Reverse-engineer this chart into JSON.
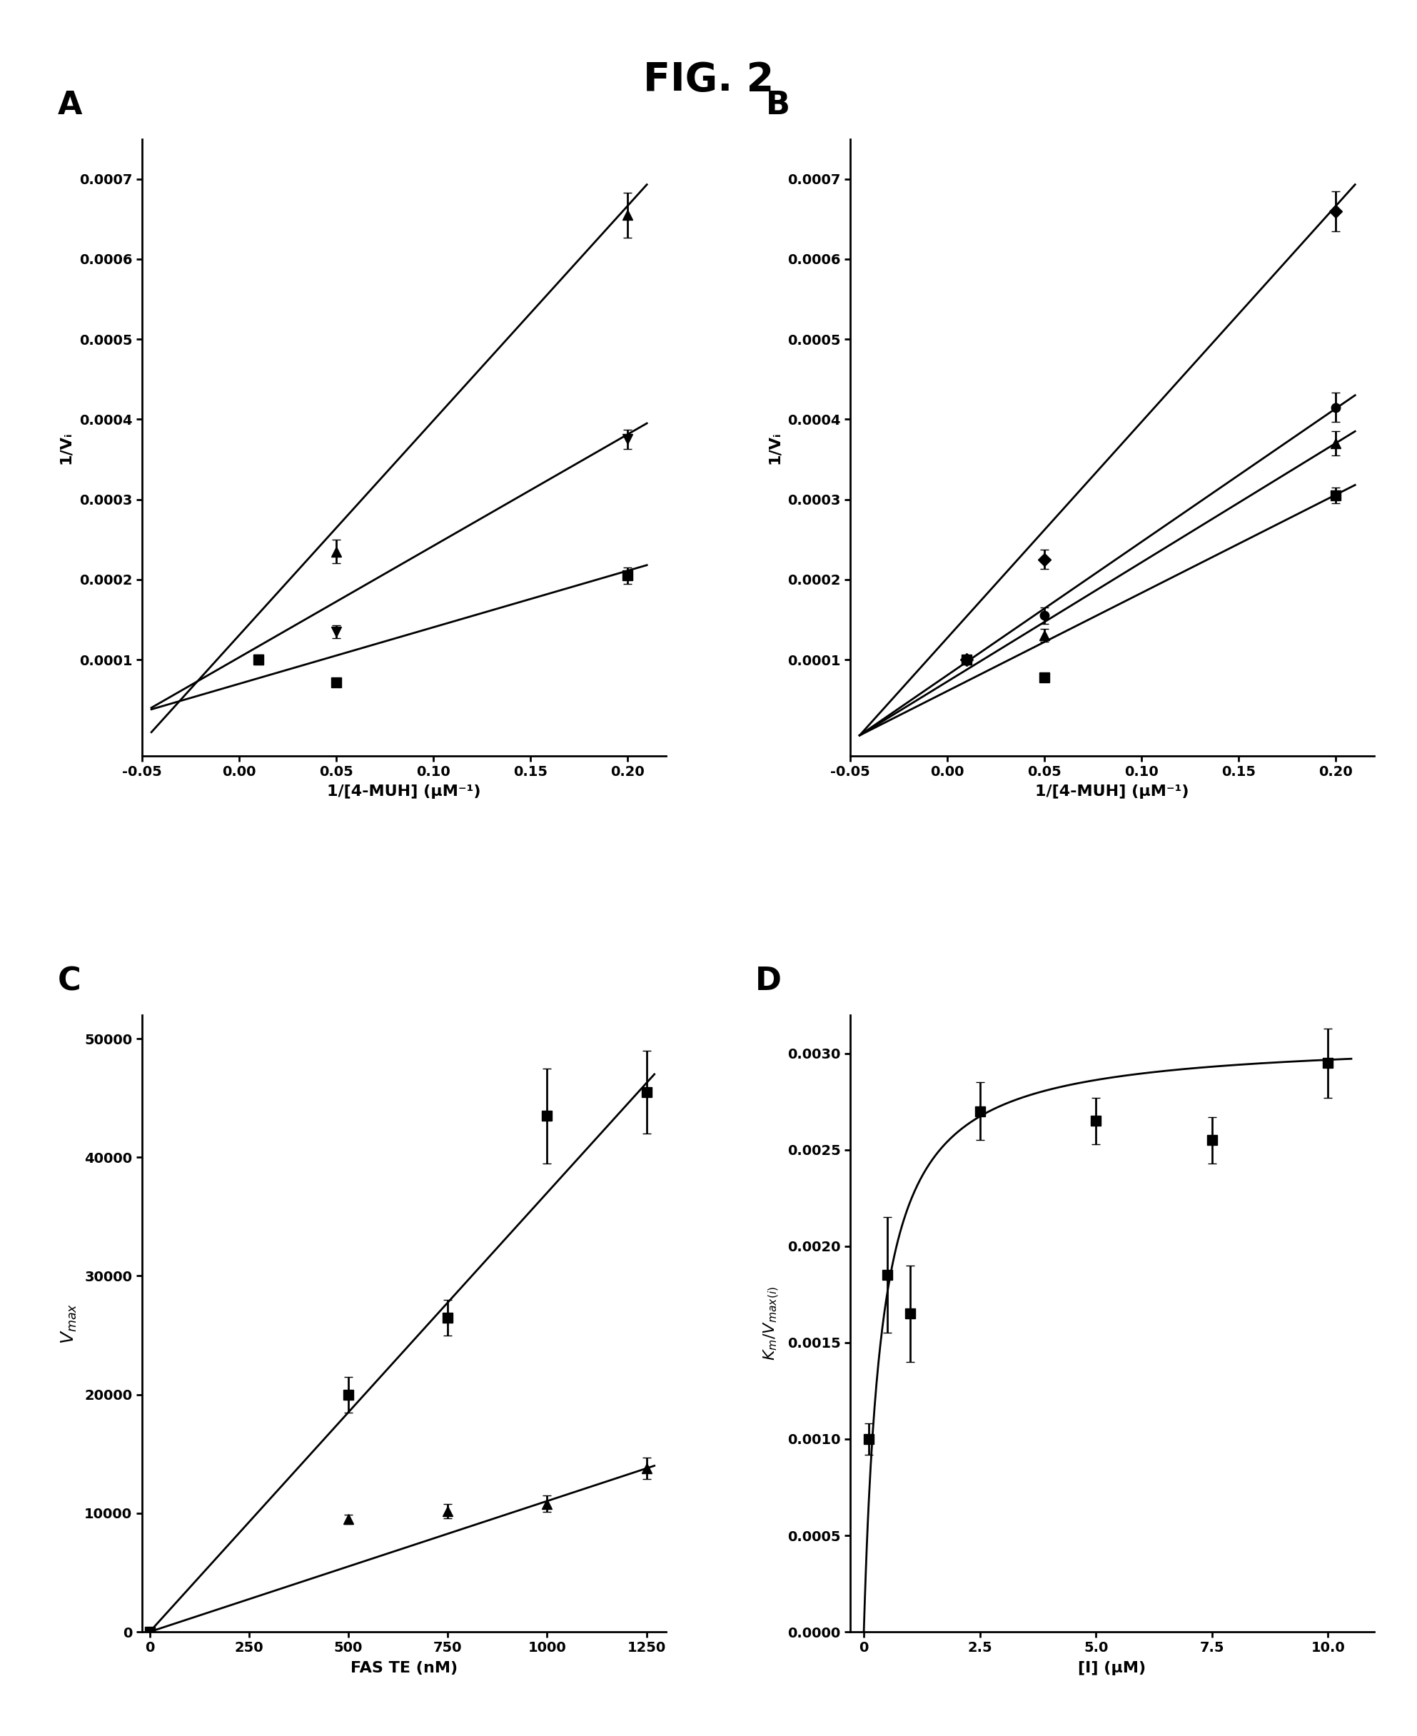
{
  "title": "FIG. 2",
  "panel_A": {
    "label": "A",
    "xlabel": "1/[4-MUH] (μM⁻¹)",
    "ylabel": "1/Vᵢ",
    "xlim": [
      -0.05,
      0.22
    ],
    "ylim": [
      -2e-05,
      0.00075
    ],
    "xticks": [
      -0.05,
      0.0,
      0.05,
      0.1,
      0.15,
      0.2
    ],
    "yticks": [
      0.0001,
      0.0002,
      0.0003,
      0.0004,
      0.0005,
      0.0006,
      0.0007
    ],
    "series": [
      {
        "x": [
          0.01,
          0.05,
          0.2
        ],
        "y": [
          0.0001,
          0.000235,
          0.000655
        ],
        "yerr": [
          5e-06,
          1.5e-05,
          2.8e-05
        ],
        "marker": "^",
        "ms": 10,
        "line_x": [
          -0.045,
          0.21
        ],
        "line_y": [
          9.5e-06,
          0.000693
        ]
      },
      {
        "x": [
          0.01,
          0.05,
          0.2
        ],
        "y": [
          0.0001,
          0.000135,
          0.000375
        ],
        "yerr": [
          5e-06,
          8e-06,
          1.2e-05
        ],
        "marker": "v",
        "ms": 10,
        "line_x": [
          -0.045,
          0.21
        ],
        "line_y": [
          4e-05,
          0.000395
        ]
      },
      {
        "x": [
          0.01,
          0.05,
          0.2
        ],
        "y": [
          0.0001,
          7.2e-05,
          0.000205
        ],
        "yerr": [
          5e-06,
          5e-06,
          1e-05
        ],
        "marker": "s",
        "ms": 10,
        "line_x": [
          -0.045,
          0.21
        ],
        "line_y": [
          3.8e-05,
          0.000218
        ]
      }
    ]
  },
  "panel_B": {
    "label": "B",
    "xlabel": "1/[4-MUH] (μM⁻¹)",
    "ylabel": "1/Vᵢ",
    "xlim": [
      -0.05,
      0.22
    ],
    "ylim": [
      -2e-05,
      0.00075
    ],
    "xticks": [
      -0.05,
      0.0,
      0.05,
      0.1,
      0.15,
      0.2
    ],
    "yticks": [
      0.0001,
      0.0002,
      0.0003,
      0.0004,
      0.0005,
      0.0006,
      0.0007
    ],
    "series": [
      {
        "x": [
          0.01,
          0.05,
          0.2
        ],
        "y": [
          0.0001,
          0.000225,
          0.00066
        ],
        "yerr": [
          5e-06,
          1.2e-05,
          2.5e-05
        ],
        "marker": "D",
        "ms": 9,
        "line_x": [
          -0.045,
          0.21
        ],
        "line_y": [
          5.5e-06,
          0.000693
        ]
      },
      {
        "x": [
          0.01,
          0.05,
          0.2
        ],
        "y": [
          0.0001,
          0.000155,
          0.000415
        ],
        "yerr": [
          5e-06,
          1e-05,
          1.8e-05
        ],
        "marker": "o",
        "ms": 9,
        "line_x": [
          -0.045,
          0.21
        ],
        "line_y": [
          5.5e-06,
          0.00043
        ]
      },
      {
        "x": [
          0.01,
          0.05,
          0.2
        ],
        "y": [
          0.0001,
          0.00013,
          0.00037
        ],
        "yerr": [
          5e-06,
          8e-06,
          1.5e-05
        ],
        "marker": "^",
        "ms": 10,
        "line_x": [
          -0.045,
          0.21
        ],
        "line_y": [
          5.5e-06,
          0.000385
        ]
      },
      {
        "x": [
          0.01,
          0.05,
          0.2
        ],
        "y": [
          0.0001,
          7.8e-05,
          0.000305
        ],
        "yerr": [
          5e-06,
          5e-06,
          1e-05
        ],
        "marker": "s",
        "ms": 10,
        "line_x": [
          -0.045,
          0.21
        ],
        "line_y": [
          5.5e-06,
          0.000318
        ]
      }
    ]
  },
  "panel_C": {
    "label": "C",
    "xlabel": "FAS TE (nM)",
    "ylabel": "V_max",
    "xlim": [
      -20,
      1300
    ],
    "ylim": [
      0,
      52000
    ],
    "xticks": [
      0,
      250,
      500,
      750,
      1000,
      1250
    ],
    "yticks": [
      0,
      10000,
      20000,
      30000,
      40000,
      50000
    ],
    "series": [
      {
        "x": [
          0,
          500,
          750,
          1000,
          1250
        ],
        "y": [
          0,
          20000,
          26500,
          43500,
          45500
        ],
        "yerr": [
          0,
          1500,
          1500,
          4000,
          3500
        ],
        "marker": "s",
        "ms": 10,
        "line_x": [
          0,
          1270
        ],
        "line_y": [
          0,
          47000
        ]
      },
      {
        "x": [
          0,
          500,
          750,
          1000,
          1250
        ],
        "y": [
          0,
          9500,
          10200,
          10800,
          13800
        ],
        "yerr": [
          0,
          400,
          600,
          700,
          900
        ],
        "marker": "^",
        "ms": 10,
        "line_x": [
          0,
          1270
        ],
        "line_y": [
          0,
          14000
        ]
      }
    ]
  },
  "panel_D": {
    "label": "D",
    "xlabel": "[I] (μM)",
    "ylabel": "K_m/V_max(i)",
    "xlim": [
      -0.3,
      11
    ],
    "ylim": [
      0,
      0.0032
    ],
    "xticks": [
      0,
      2.5,
      5.0,
      7.5,
      10.0
    ],
    "ytick_vals": [
      0.0,
      0.0005,
      0.001,
      0.0015,
      0.002,
      0.0025,
      0.003
    ],
    "ytick_labels": [
      "0.0000",
      "0.0005",
      "0.0010",
      "0.0015",
      "0.0020",
      "0.0025",
      "0.0030"
    ],
    "data_x": [
      0.1,
      0.5,
      1.0,
      2.5,
      5.0,
      7.5,
      10.0
    ],
    "data_y": [
      0.001,
      0.00185,
      0.00165,
      0.0027,
      0.00265,
      0.00255,
      0.00295
    ],
    "data_yerr": [
      8e-05,
      0.0003,
      0.00025,
      0.00015,
      0.00012,
      0.00012,
      0.00018
    ],
    "Ki": 0.38,
    "Vmax_sat": 0.00308,
    "marker": "s",
    "ms": 10
  }
}
